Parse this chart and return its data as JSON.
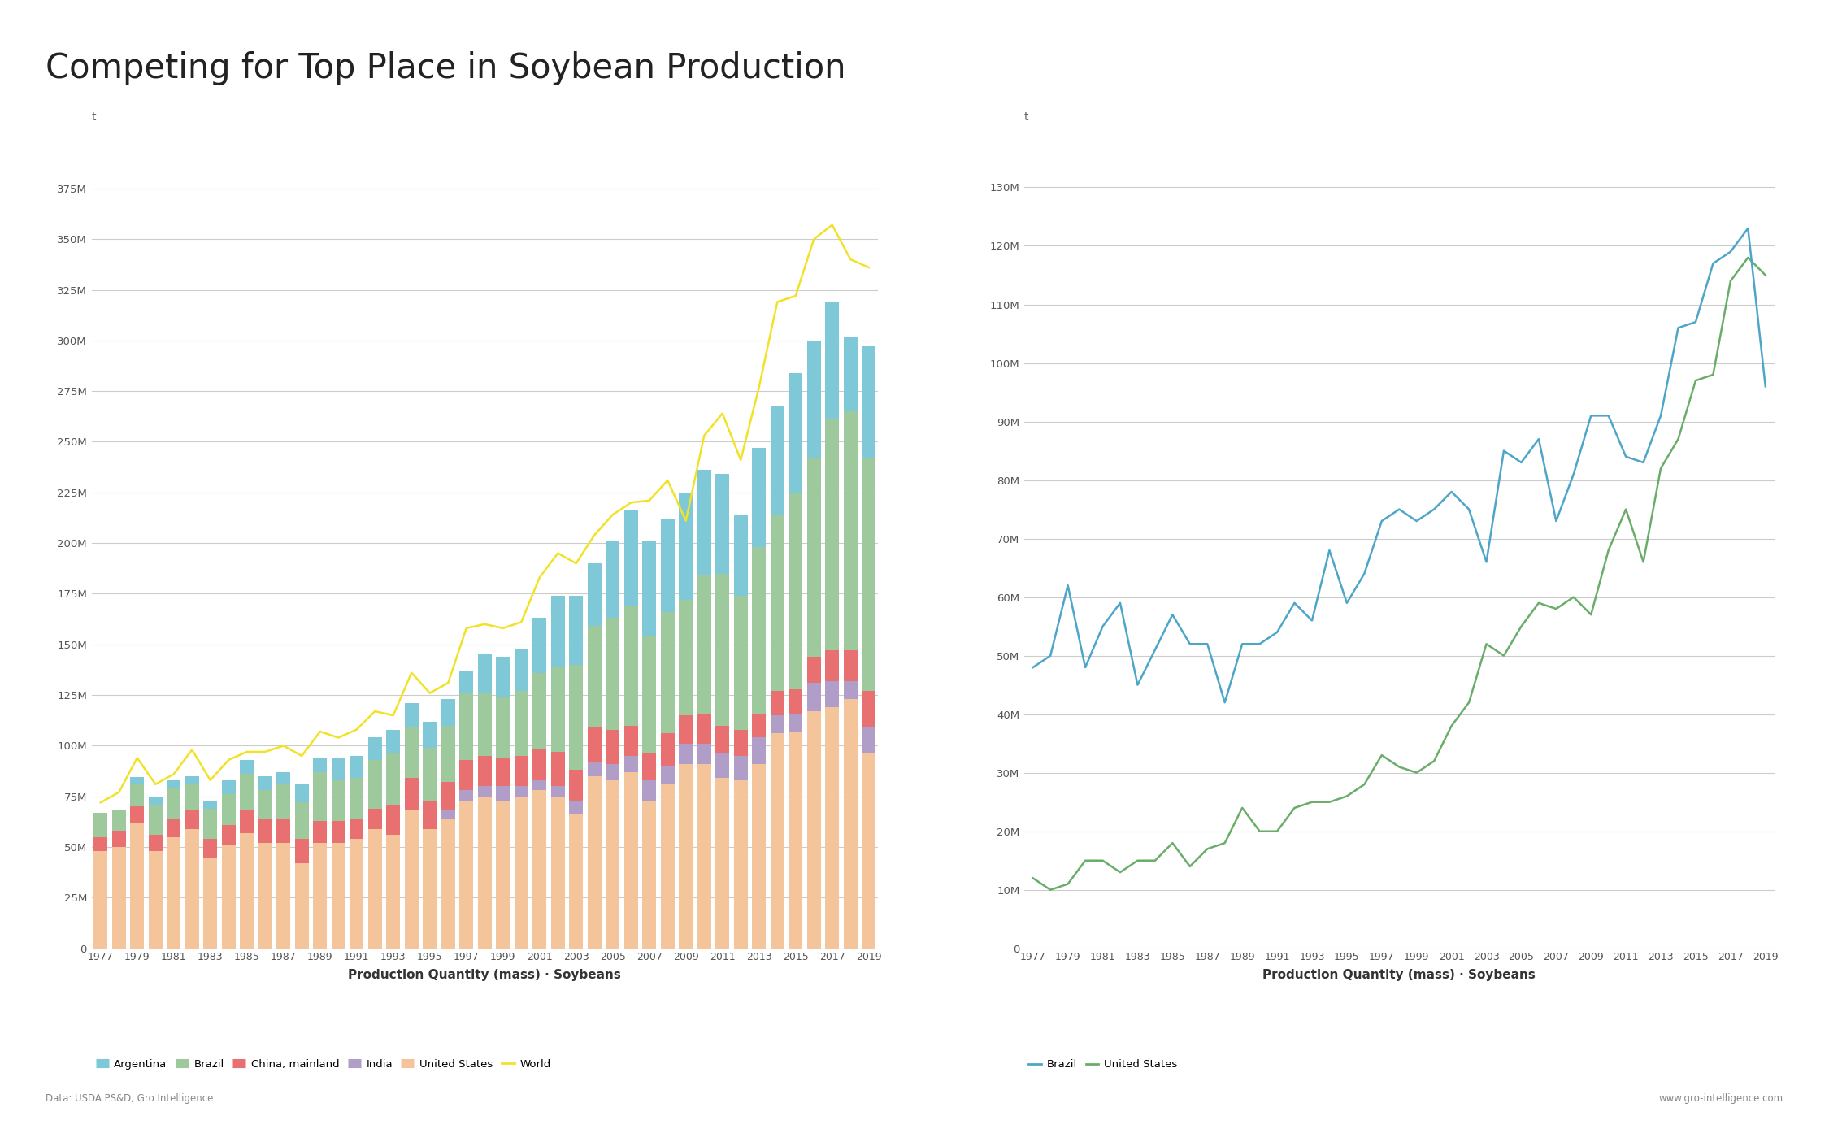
{
  "title": "Competing for Top Place in Soybean Production",
  "years": [
    1977,
    1978,
    1979,
    1980,
    1981,
    1982,
    1983,
    1984,
    1985,
    1986,
    1987,
    1988,
    1989,
    1990,
    1991,
    1992,
    1993,
    1994,
    1995,
    1996,
    1997,
    1998,
    1999,
    2000,
    2001,
    2002,
    2003,
    2004,
    2005,
    2006,
    2007,
    2008,
    2009,
    2010,
    2011,
    2012,
    2013,
    2014,
    2015,
    2016,
    2017,
    2018,
    2019
  ],
  "argentina": [
    0,
    0,
    3.5,
    3.5,
    4,
    4,
    4,
    7,
    7,
    7,
    6,
    9,
    7,
    11,
    11,
    11,
    12,
    12,
    13,
    13,
    11,
    19,
    20,
    21,
    27,
    35,
    34,
    31,
    38,
    47,
    47,
    46,
    53,
    52,
    49,
    40,
    49,
    54,
    59,
    58,
    58,
    37,
    55
  ],
  "brazil": [
    12,
    10,
    11,
    15,
    15,
    13,
    15,
    15,
    18,
    14,
    17,
    18,
    24,
    20,
    20,
    24,
    25,
    25,
    26,
    28,
    33,
    31,
    30,
    32,
    38,
    42,
    52,
    50,
    55,
    59,
    58,
    60,
    57,
    68,
    75,
    66,
    82,
    87,
    97,
    98,
    114,
    118,
    115
  ],
  "china": [
    7,
    8,
    8,
    8,
    9,
    9,
    9,
    10,
    11,
    12,
    12,
    12,
    11,
    11,
    10,
    10,
    15,
    16,
    14,
    14,
    15,
    15,
    14,
    15,
    15,
    17,
    15,
    17,
    17,
    15,
    13,
    16,
    14,
    15,
    14,
    13,
    12,
    12,
    12,
    13,
    15,
    15,
    18
  ],
  "india": [
    0,
    0,
    0,
    0,
    0,
    0,
    0,
    0,
    0,
    0,
    0,
    0,
    0,
    0,
    0,
    0,
    0,
    0,
    0,
    4,
    5,
    5,
    7,
    5,
    5,
    5,
    7,
    7,
    8,
    8,
    10,
    9,
    10,
    10,
    12,
    12,
    13,
    9,
    9,
    14,
    13,
    9,
    13
  ],
  "usa": [
    48,
    50,
    62,
    48,
    55,
    59,
    45,
    51,
    57,
    52,
    52,
    42,
    52,
    52,
    54,
    59,
    56,
    68,
    59,
    64,
    73,
    75,
    73,
    75,
    78,
    75,
    66,
    85,
    83,
    87,
    73,
    81,
    91,
    91,
    84,
    83,
    91,
    106,
    107,
    117,
    119,
    123,
    96
  ],
  "world": [
    72,
    77,
    94,
    81,
    86,
    98,
    83,
    93,
    97,
    97,
    100,
    95,
    107,
    104,
    108,
    117,
    115,
    136,
    126,
    131,
    158,
    160,
    158,
    161,
    183,
    195,
    190,
    204,
    214,
    220,
    221,
    231,
    211,
    253,
    264,
    241,
    277,
    319,
    322,
    350,
    357,
    340,
    336
  ],
  "left_ylim": [
    0,
    390000000
  ],
  "left_yticks": [
    0,
    25000000,
    50000000,
    75000000,
    100000000,
    125000000,
    150000000,
    175000000,
    200000000,
    225000000,
    250000000,
    275000000,
    300000000,
    325000000,
    350000000,
    375000000
  ],
  "right_ylim": [
    0,
    135000000
  ],
  "right_yticks": [
    0,
    10000000,
    20000000,
    30000000,
    40000000,
    50000000,
    60000000,
    70000000,
    80000000,
    90000000,
    100000000,
    110000000,
    120000000,
    130000000
  ],
  "color_argentina": "#7EC8D8",
  "color_brazil": "#9DC99D",
  "color_china": "#E87070",
  "color_india": "#B09EC9",
  "color_usa": "#F4C49B",
  "color_world": "#F2E227",
  "color_brazil_line": "#6AAD6A",
  "color_usa_line": "#4DA6C8",
  "xlabel": "Production Quantity (mass) · Soybeans",
  "ylabel": "t",
  "footer_left": "Data: USDA PS&D, Gro Intelligence",
  "footer_right": "www.gro-intelligence.com",
  "background_color": "#FFFFFF",
  "grid_color": "#CCCCCC"
}
